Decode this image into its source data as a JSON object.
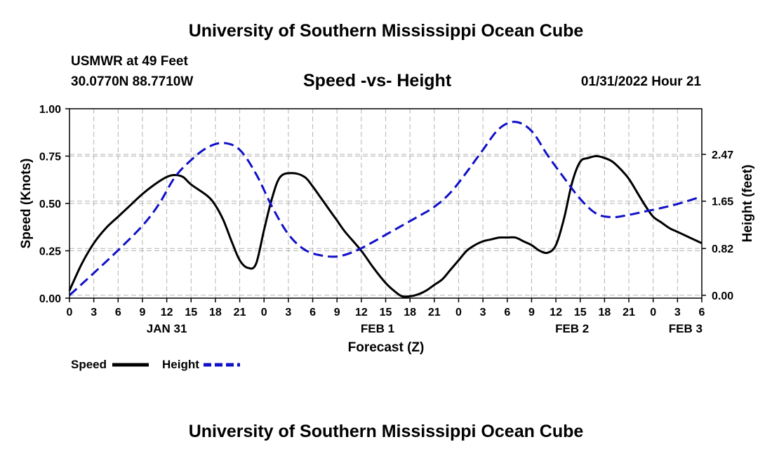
{
  "header": {
    "title": "University of Southern Mississippi Ocean Cube",
    "station": "USMWR at 49 Feet",
    "coords": "30.0770N  88.7710W",
    "subtitle": "Speed -vs- Height",
    "datetime": "01/31/2022 Hour 21"
  },
  "footer": {
    "title": "University of Southern Mississippi Ocean Cube"
  },
  "colors": {
    "speed": "#000000",
    "height": "#1010c8",
    "grid": "#b4b4b4"
  },
  "chart_data": {
    "type": "line",
    "xlabel": "Forecast (Z)",
    "xlim": [
      0,
      78
    ],
    "x_ticks": [
      0,
      3,
      6,
      9,
      12,
      15,
      18,
      21,
      24,
      27,
      30,
      33,
      36,
      39,
      42,
      45,
      48,
      51,
      54,
      57,
      60,
      63,
      66,
      69,
      72,
      75,
      78
    ],
    "x_tick_labels": [
      "0",
      "3",
      "6",
      "9",
      "12",
      "15",
      "18",
      "21",
      "0",
      "3",
      "6",
      "9",
      "12",
      "15",
      "18",
      "21",
      "0",
      "3",
      "6",
      "9",
      "12",
      "15",
      "18",
      "21",
      "0",
      "3",
      "6"
    ],
    "day_labels": [
      {
        "x": 12,
        "label": "JAN 31"
      },
      {
        "x": 38,
        "label": "FEB 1"
      },
      {
        "x": 62,
        "label": "FEB 2"
      },
      {
        "x": 76,
        "label": "FEB 3"
      }
    ],
    "ylabel_left": "Speed (Knots)",
    "ylim_left": [
      0,
      1
    ],
    "y_ticks_left": [
      0,
      0.25,
      0.5,
      0.75,
      1.0
    ],
    "y_tick_labels_left": [
      "0.00",
      "0.25",
      "0.50",
      "0.75",
      "1.00"
    ],
    "ylabel_right": "Height (feet)",
    "ylim_right": [
      -0.05,
      3.27
    ],
    "y_ticks_right": [
      0,
      0.82,
      1.65,
      2.47
    ],
    "y_tick_labels_right": [
      "0.00",
      "0.82",
      "1.65",
      "2.47"
    ],
    "grid": true,
    "legend_position": "bottom-left",
    "series": [
      {
        "name": "Speed",
        "axis": "left",
        "style": "solid",
        "x": [
          0,
          1.5,
          3,
          4.5,
          6,
          7.5,
          9,
          10.5,
          12,
          13,
          14,
          15,
          17,
          18,
          19,
          20,
          21,
          22,
          23,
          24,
          25,
          26,
          27.5,
          29,
          30,
          31,
          32,
          33,
          34,
          36,
          37.5,
          39,
          40,
          41,
          42,
          43,
          44,
          45,
          46,
          47,
          48,
          49,
          50,
          51,
          52,
          53,
          54,
          55,
          56,
          57,
          58,
          59,
          60,
          61,
          62,
          63,
          64,
          65,
          66,
          67,
          68,
          69,
          70,
          71,
          72,
          73,
          74,
          75,
          76,
          77,
          78
        ],
        "values": [
          0.04,
          0.18,
          0.29,
          0.37,
          0.43,
          0.49,
          0.55,
          0.6,
          0.64,
          0.65,
          0.64,
          0.6,
          0.54,
          0.49,
          0.41,
          0.3,
          0.2,
          0.16,
          0.18,
          0.36,
          0.53,
          0.64,
          0.66,
          0.64,
          0.59,
          0.53,
          0.47,
          0.41,
          0.35,
          0.25,
          0.16,
          0.08,
          0.04,
          0.01,
          0.01,
          0.02,
          0.04,
          0.07,
          0.1,
          0.15,
          0.2,
          0.25,
          0.28,
          0.3,
          0.31,
          0.32,
          0.32,
          0.32,
          0.3,
          0.28,
          0.25,
          0.24,
          0.28,
          0.42,
          0.61,
          0.72,
          0.74,
          0.75,
          0.74,
          0.72,
          0.68,
          0.63,
          0.56,
          0.49,
          0.43,
          0.4,
          0.37,
          0.35,
          0.33,
          0.31,
          0.29
        ]
      },
      {
        "name": "Height",
        "axis": "right",
        "style": "dashed",
        "x": [
          0,
          3,
          6,
          9,
          11,
          13,
          15,
          17,
          19,
          21,
          23,
          25,
          27,
          29,
          31,
          33,
          35,
          37,
          39,
          41,
          43,
          45,
          47,
          49,
          51,
          53,
          55,
          57,
          59,
          61,
          63,
          65,
          67,
          69,
          71,
          73,
          75,
          78
        ],
        "values": [
          0.0,
          0.39,
          0.79,
          1.22,
          1.59,
          2.07,
          2.37,
          2.59,
          2.67,
          2.55,
          2.13,
          1.55,
          1.07,
          0.8,
          0.7,
          0.68,
          0.76,
          0.9,
          1.06,
          1.22,
          1.38,
          1.55,
          1.8,
          2.16,
          2.55,
          2.92,
          3.04,
          2.88,
          2.45,
          2.06,
          1.69,
          1.43,
          1.37,
          1.41,
          1.47,
          1.53,
          1.6,
          1.73
        ]
      }
    ]
  }
}
